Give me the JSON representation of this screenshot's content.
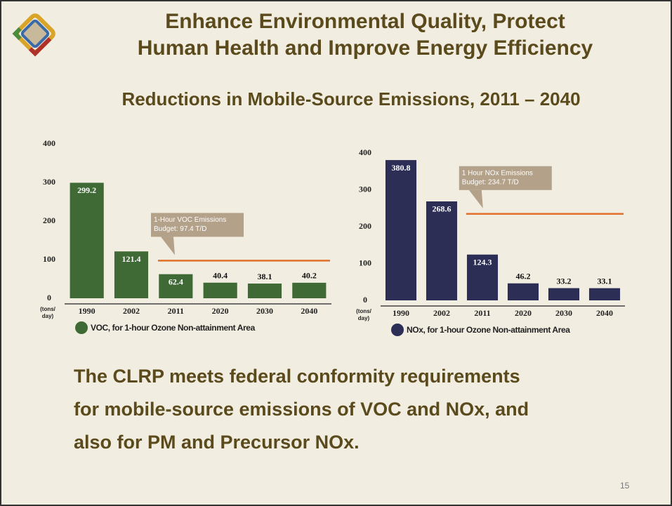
{
  "slide": {
    "title": [
      "Enhance Environmental Quality, Protect",
      "Human Health and Improve Energy Efficiency"
    ],
    "subtitle": "Reductions in Mobile-Source Emissions, 2011 – 2040",
    "body": [
      "The CLRP meets federal conformity requirements",
      "for mobile-source emissions of VOC and NOx, and",
      "also for PM and Precursor NOx."
    ],
    "page_number": "15"
  },
  "chart_data": [
    {
      "type": "bar",
      "categories": [
        "1990",
        "2002",
        "2011",
        "2020",
        "2030",
        "2040"
      ],
      "values": [
        299.2,
        121.4,
        62.4,
        40.4,
        38.1,
        40.2
      ],
      "color": "#3f6a35",
      "ylim": [
        0,
        400
      ],
      "yticks": [
        0,
        100,
        200,
        300,
        400
      ],
      "y_label": [
        "(tons/",
        "day)"
      ],
      "legend": "VOC, for 1-hour Ozone Non-attainment Area",
      "budget": 97.4,
      "budget_color": "#e0702a",
      "annotation": [
        "1-Hour VOC Emissions",
        "Budget: 97.4 T/D"
      ]
    },
    {
      "type": "bar",
      "categories": [
        "1990",
        "2002",
        "2011",
        "2020",
        "2030",
        "2040"
      ],
      "values": [
        380.8,
        268.6,
        124.3,
        46.2,
        33.2,
        33.1
      ],
      "color": "#2c2e56",
      "ylim": [
        0,
        400
      ],
      "yticks": [
        0,
        100,
        200,
        300,
        400
      ],
      "y_label": [
        "(tons/",
        "day)"
      ],
      "legend": "NOx, for 1-hour Ozone Non-attainment Area",
      "budget": 234.7,
      "budget_color": "#e0702a",
      "annotation": [
        "1 Hour NOx Emissions",
        "Budget: 234.7 T/D"
      ]
    }
  ]
}
